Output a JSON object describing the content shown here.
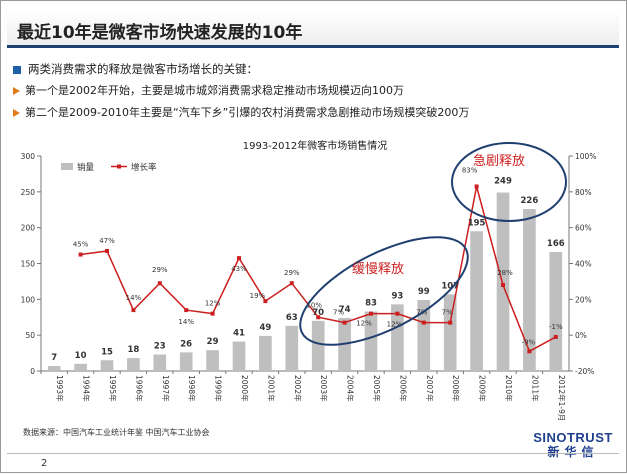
{
  "header": {
    "title": "最近10年是微客市场快速发展的10年"
  },
  "bullets": {
    "main": "两类消费需求的释放是微客市场增长的关键：",
    "sub1": "第一个是2002年开始，主要是城市城郊消费需求稳定推动市场规模迈向100万",
    "sub2": "第二个是2009-2010年主要是“汽车下乡”引爆的农村消费需求急剧推动市场规模突破200万"
  },
  "chart_data": {
    "type": "bar",
    "title": "1993-2012年微客市场销售情况",
    "categories": [
      "1993年",
      "1994年",
      "1995年",
      "1996年",
      "1997年",
      "1998年",
      "1999年",
      "2000年",
      "2001年",
      "2002年",
      "2003年",
      "2004年",
      "2005年",
      "2006年",
      "2007年",
      "2008年",
      "2009年",
      "2010年",
      "2011年",
      "2012年1-9月"
    ],
    "series": [
      {
        "name": "销量",
        "type": "bar",
        "axis": "left",
        "color": "#bfbfbf",
        "values": [
          7,
          10,
          15,
          18,
          23,
          26,
          29,
          41,
          49,
          63,
          70,
          74,
          83,
          93,
          99,
          107,
          195,
          249,
          226,
          166
        ],
        "labels": [
          "7",
          "10",
          "15",
          "18",
          "23",
          "26",
          "29",
          "41",
          "49",
          "63",
          "70",
          "74",
          "83",
          "93",
          "99",
          "107",
          "195",
          "249",
          "226",
          "166"
        ]
      },
      {
        "name": "增长率",
        "type": "line",
        "axis": "right",
        "color": "#cc1f1f",
        "values": [
          null,
          45,
          47,
          14,
          29,
          14,
          12,
          43,
          19,
          29,
          10,
          7,
          12,
          12,
          7,
          7,
          83,
          28,
          -9,
          -1
        ],
        "labels": [
          "",
          "45%",
          "47%",
          "14%",
          "29%",
          "14%",
          "12%",
          "43%",
          "19%",
          "29%",
          "10%",
          "7%",
          "12%",
          "12%",
          "7%",
          "7%",
          "83%",
          "28%",
          "-9%",
          "-1%"
        ]
      }
    ],
    "ylim": [
      0,
      300
    ],
    "yticks": [
      "0",
      "50",
      "100",
      "150",
      "200",
      "250",
      "300"
    ],
    "y2lim": [
      -20,
      100
    ],
    "y2ticks": [
      "-20%",
      "0%",
      "20%",
      "40%",
      "60%",
      "80%",
      "100%"
    ],
    "legend_position": "top-left",
    "annotations": [
      "急剧释放",
      "缓慢释放"
    ]
  },
  "footer": {
    "source": "数据来源：中国汽车工业统计年鉴 中国汽车工业协会",
    "logo_en": "SINOTRUST",
    "logo_cn": "新华信",
    "page": "2"
  }
}
